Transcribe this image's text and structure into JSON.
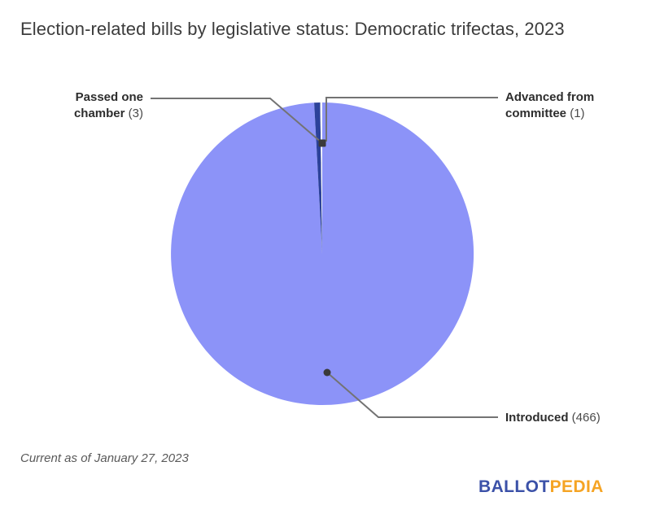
{
  "title": "Election-related bills by legislative status: Democratic trifectas, 2023",
  "footer": "Current as of January 27, 2023",
  "logo": {
    "ballot": "BALLOT",
    "pedia": "PEDIA",
    "ballot_color": "#3B51A8",
    "pedia_color": "#F5A424"
  },
  "chart_data": {
    "type": "pie",
    "title": "Election-related bills by legislative status: Democratic trifectas, 2023",
    "total": 470,
    "start_angle_deg": 0,
    "direction": "clockwise",
    "legend_position": "callouts",
    "slices": [
      {
        "label": "Introduced",
        "value": 466,
        "color": "#8C93F8"
      },
      {
        "label": "Passed one chamber",
        "value": 3,
        "color": "#2C429A"
      },
      {
        "label": "Advanced from committee",
        "value": 1,
        "color": "#FFFFFF"
      }
    ],
    "annotation_line_color": "#737373",
    "annotation_dot_color": "#3a3a3a"
  },
  "callouts": {
    "passed": {
      "name": "Passed one chamber",
      "count": "(3)"
    },
    "advanced": {
      "name": "Advanced from committee",
      "count": "(1)"
    },
    "introduced": {
      "name": "Introduced",
      "count": "(466)"
    }
  }
}
